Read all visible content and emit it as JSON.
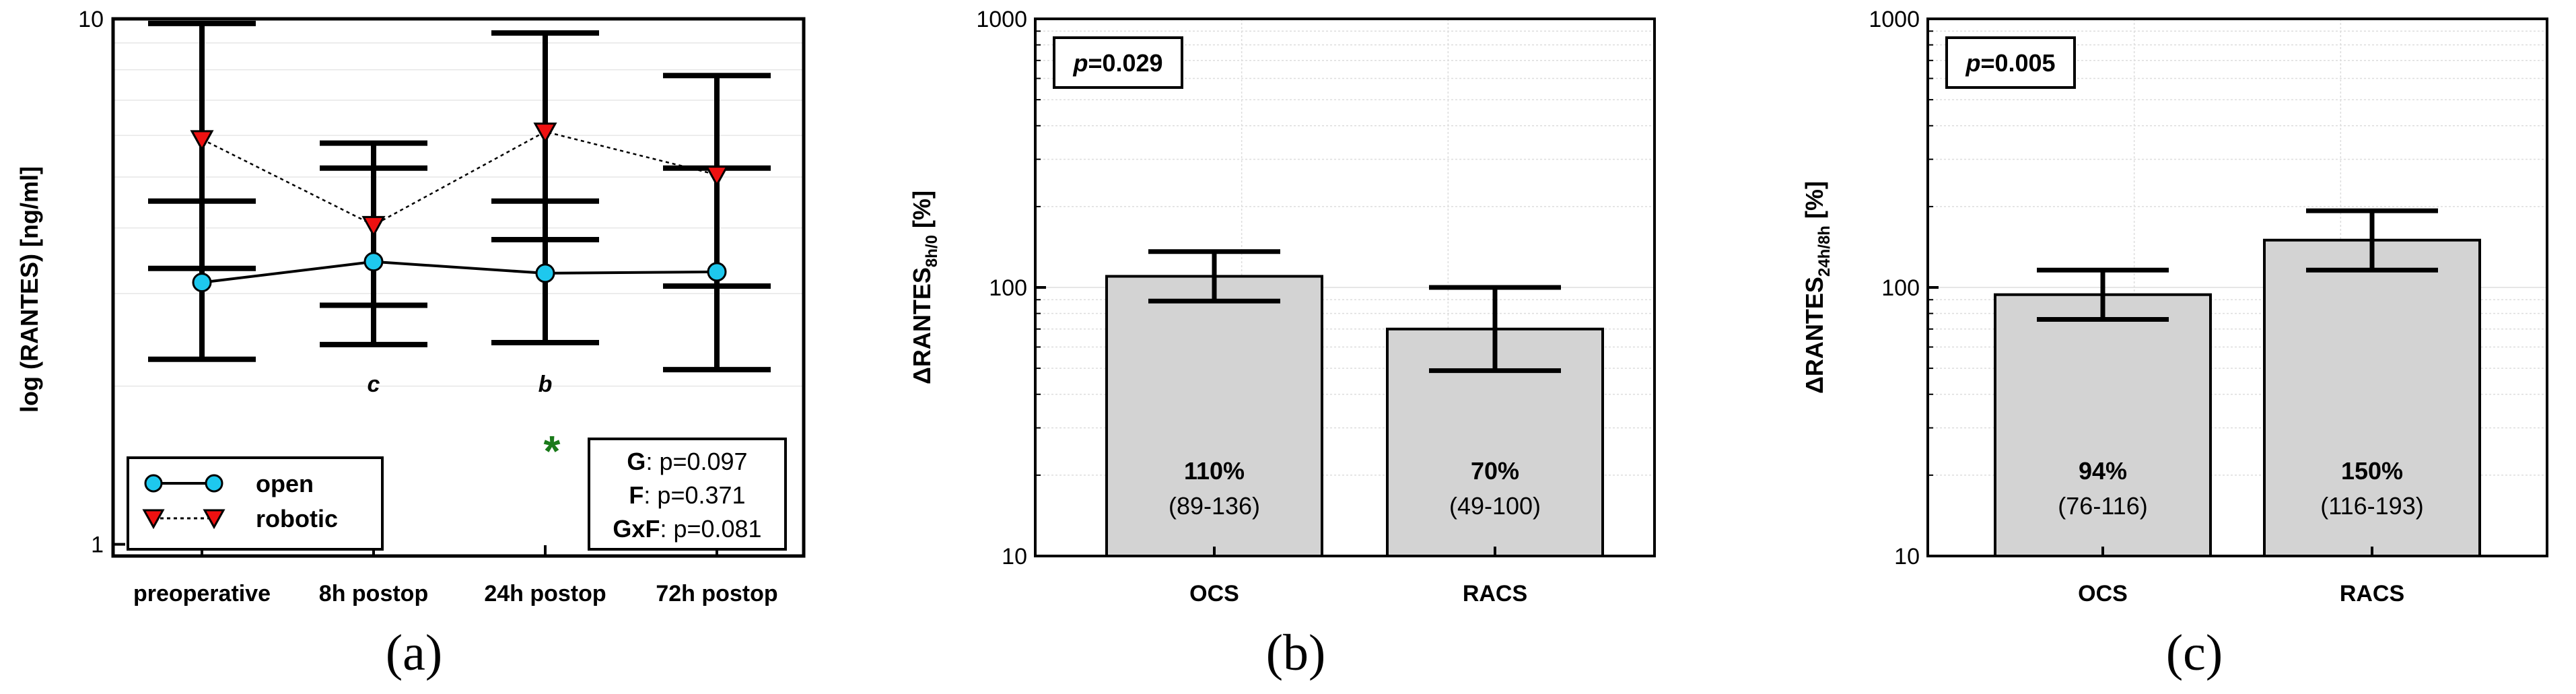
{
  "chart_data": [
    {
      "id": "a",
      "type": "line",
      "panel_label": "(a)",
      "ylabel": "log (RANTES) [ng/ml]",
      "yscale": "log",
      "ylim": [
        0.95,
        10
      ],
      "yticks": [
        {
          "value": 1,
          "label": "1"
        },
        {
          "value": 10,
          "label": "10"
        }
      ],
      "categories": [
        "preoperative",
        "8h postop",
        "24h postop",
        "72h postop"
      ],
      "series": [
        {
          "name": "open",
          "marker": "circle",
          "color": "#1ec8ee",
          "line": "solid",
          "values": [
            3.15,
            3.45,
            3.28,
            3.3
          ],
          "lower": [
            2.25,
            2.4,
            2.42,
            2.15
          ],
          "upper": [
            4.5,
            5.2,
            4.5,
            5.2
          ]
        },
        {
          "name": "robotic",
          "marker": "triangle-down",
          "color": "#ee1111",
          "line": "dotted",
          "values": [
            5.9,
            4.05,
            6.1,
            5.05
          ],
          "lower": [
            3.35,
            2.85,
            3.8,
            3.1
          ],
          "upper": [
            9.8,
            5.8,
            9.4,
            7.8
          ]
        }
      ],
      "annotations": [
        {
          "category": "8h postop",
          "text": "c"
        },
        {
          "category": "24h postop",
          "text": "b"
        },
        {
          "category": "24h postop",
          "text": "*",
          "color": "#1a7a1a"
        }
      ],
      "stats": [
        {
          "key": "G",
          "text": ": p=0.097"
        },
        {
          "key": "F",
          "text": ": p=0.371"
        },
        {
          "key": "GxF",
          "text": ": p=0.081"
        }
      ],
      "legend_position": "bottom-left"
    },
    {
      "id": "b",
      "type": "bar",
      "panel_label": "(b)",
      "ylabel_main": "ΔRANTES",
      "ylabel_sub": "8h/0",
      "ylabel_tail": " [%]",
      "yscale": "log",
      "ylim": [
        10,
        1000
      ],
      "yticks": [
        {
          "value": 10,
          "label": "10"
        },
        {
          "value": 100,
          "label": "100"
        },
        {
          "value": 1000,
          "label": "1000"
        }
      ],
      "categories": [
        "OCS",
        "RACS"
      ],
      "values": [
        110,
        70
      ],
      "lower": [
        89,
        49
      ],
      "upper": [
        136,
        100
      ],
      "value_labels": [
        "110%",
        "70%"
      ],
      "range_labels": [
        "(89-136)",
        "(49-100)"
      ],
      "p_value_label": "p",
      "p_value_text": "=0.029",
      "bar_color": "#d3d3d3",
      "grid": true
    },
    {
      "id": "c",
      "type": "bar",
      "panel_label": "(c)",
      "ylabel_main": "ΔRANTES",
      "ylabel_sub": "24h/8h",
      "ylabel_tail": " [%]",
      "yscale": "log",
      "ylim": [
        10,
        1000
      ],
      "yticks": [
        {
          "value": 10,
          "label": "10"
        },
        {
          "value": 100,
          "label": "100"
        },
        {
          "value": 1000,
          "label": "1000"
        }
      ],
      "categories": [
        "OCS",
        "RACS"
      ],
      "values": [
        94,
        150
      ],
      "lower": [
        76,
        116
      ],
      "upper": [
        116,
        193
      ],
      "value_labels": [
        "94%",
        "150%"
      ],
      "range_labels": [
        "(76-116)",
        "(116-193)"
      ],
      "p_value_label": "p",
      "p_value_text": "=0.005",
      "bar_color": "#d3d3d3",
      "grid": true
    }
  ]
}
